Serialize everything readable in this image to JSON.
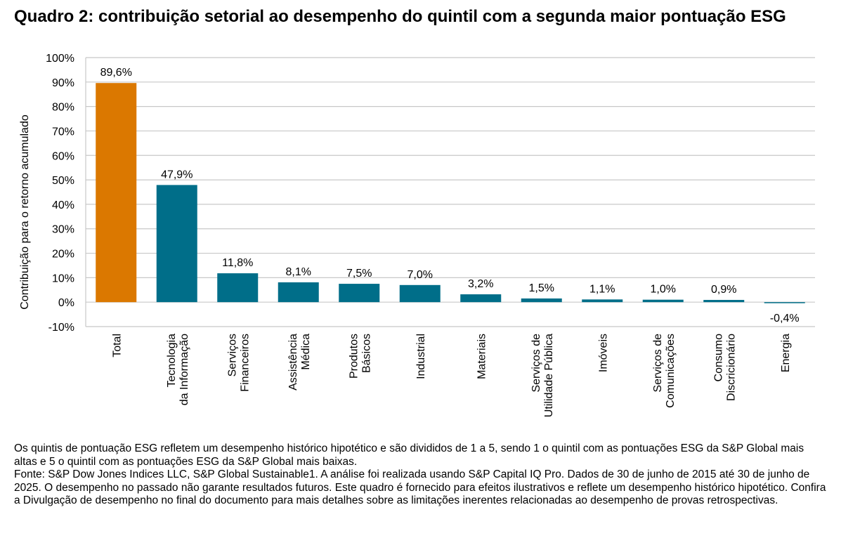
{
  "title": "Quadro 2: contribuição setorial ao desempenho do quintil com a segunda maior pontuação ESG",
  "chart_data": {
    "type": "bar",
    "title": "Quadro 2: contribuição setorial ao desempenho do quintil com a segunda maior pontuação ESG",
    "xlabel": "",
    "ylabel": "Contribuição para o retorno acumulado",
    "ylim": [
      -10,
      100
    ],
    "yticks": [
      -10,
      0,
      10,
      20,
      30,
      40,
      50,
      60,
      70,
      80,
      90,
      100
    ],
    "ytick_labels": [
      "-10%",
      "0%",
      "10%",
      "20%",
      "30%",
      "40%",
      "50%",
      "60%",
      "70%",
      "80%",
      "90%",
      "100%"
    ],
    "grid": true,
    "categories": [
      "Total",
      "Tecnologia\nda Informação",
      "Serviços\nFinanceiros",
      "Assistência\nMédica",
      "Produtos\nBásicos",
      "Industrial",
      "Materiais",
      "Serviços de\nUtilidade Pública",
      "Imóveis",
      "Serviços de\nComunicações",
      "Consumo\nDiscricionário",
      "Energia"
    ],
    "values": [
      89.6,
      47.9,
      11.8,
      8.1,
      7.5,
      7.0,
      3.2,
      1.5,
      1.1,
      1.0,
      0.9,
      -0.4
    ],
    "data_labels": [
      "89,6%",
      "47,9%",
      "11,8%",
      "8,1%",
      "7,5%",
      "7,0%",
      "3,2%",
      "1,5%",
      "1,1%",
      "1,0%",
      "0,9%",
      "-0,4%"
    ],
    "colors": {
      "total": "#DB7800",
      "sector": "#006E89",
      "grid": "#C8C8C8"
    }
  },
  "notes": [
    "Os quintis de pontuação ESG refletem um desempenho histórico hipotético e são divididos de 1 a 5, sendo 1 o quintil com as pontuações ESG da S&P Global mais altas e 5 o quintil com as pontuações ESG da S&P Global mais baixas.",
    "Fonte: S&P Dow Jones Indices LLC, S&P Global Sustainable1. A análise foi realizada usando S&P Capital IQ Pro. Dados de 30 de junho de 2015 até 30 de junho de 2025. O desempenho no passado não garante resultados futuros. Este quadro é fornecido para efeitos ilustrativos e reflete um desempenho histórico hipotético. Confira a Divulgação de desempenho no final do documento para mais detalhes sobre as limitações inerentes relacionadas ao desempenho de provas retrospectivas."
  ]
}
